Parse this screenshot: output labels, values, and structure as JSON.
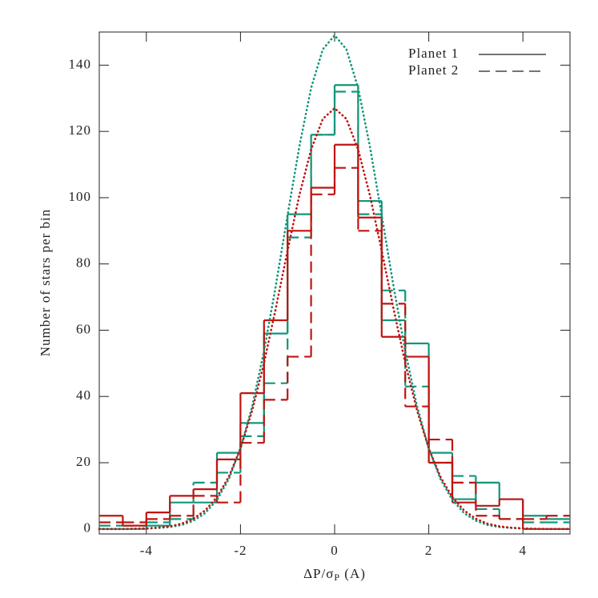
{
  "chart_data": {
    "type": "histogram",
    "xlabel": [
      "ΔP/σ",
      "P",
      " (A)"
    ],
    "ylabel": "Number of stars per bin",
    "xlim": [
      -5,
      5
    ],
    "ylim": [
      -1.5,
      150
    ],
    "xticks": [
      -4,
      -2,
      0,
      2,
      4
    ],
    "yticks": [
      0,
      20,
      40,
      60,
      80,
      100,
      120,
      140
    ],
    "bins": [
      -5,
      -4.5,
      -4,
      -3.5,
      -3,
      -2.5,
      -2,
      -1.5,
      -1,
      -0.5,
      0,
      0.5,
      1,
      1.5,
      2,
      2.5,
      3,
      3.5,
      4,
      4.5,
      5
    ],
    "legend": [
      {
        "label": "Planet 1",
        "dash": "solid"
      },
      {
        "label": "Planet 2",
        "dash": "dashed"
      }
    ],
    "series": [
      {
        "color": "#12967a",
        "dash": "solid",
        "values": [
          0,
          0,
          1,
          8,
          8,
          23,
          32,
          59,
          95,
          119,
          134,
          99,
          63,
          56,
          23,
          9,
          14,
          9,
          4,
          3
        ]
      },
      {
        "color": "#12967a",
        "dash": "dashed",
        "values": [
          1,
          1,
          2,
          3,
          14,
          17,
          28,
          44,
          88,
          119,
          132,
          95,
          72,
          43,
          20,
          16,
          6,
          3,
          2,
          2
        ]
      },
      {
        "color": "#bf1410",
        "dash": "solid",
        "values": [
          4,
          1,
          5,
          10,
          12,
          21,
          41,
          63,
          90,
          103,
          116,
          94,
          58,
          52,
          20,
          8,
          7,
          9,
          0,
          0
        ]
      },
      {
        "color": "#bf1410",
        "dash": "dashed",
        "values": [
          2,
          2,
          3,
          4,
          10,
          8,
          26,
          39,
          52,
          101,
          109,
          90,
          68,
          37,
          27,
          14,
          4,
          3,
          3,
          4
        ]
      }
    ],
    "curves": {
      "x": [
        -5,
        -4.75,
        -4.5,
        -4.25,
        -4,
        -3.75,
        -3.5,
        -3.25,
        -3,
        -2.75,
        -2.5,
        -2.25,
        -2,
        -1.75,
        -1.5,
        -1.25,
        -1,
        -0.75,
        -0.5,
        -0.25,
        0,
        0.25,
        0.5,
        0.75,
        1,
        1.25,
        1.5,
        1.75,
        2,
        2.25,
        2.5,
        2.75,
        3,
        3.25,
        3.5,
        3.75,
        4,
        4.25,
        4.5,
        4.75,
        5
      ],
      "series": [
        {
          "color": "#12967a",
          "values": [
            0,
            0,
            0,
            0,
            0.1,
            0.3,
            0.6,
            1.2,
            2.5,
            4.8,
            8.8,
            15.0,
            24.3,
            37.1,
            53.7,
            73.4,
            94.7,
            115.4,
            133.1,
            144.8,
            149,
            144.8,
            133.1,
            115.4,
            94.7,
            73.4,
            53.7,
            37.1,
            24.3,
            15.0,
            8.8,
            4.8,
            2.5,
            1.2,
            0.6,
            0.3,
            0.1,
            0,
            0,
            0,
            0
          ]
        },
        {
          "color": "#bf1410",
          "values": [
            0,
            0,
            0,
            0.1,
            0.2,
            0.4,
            0.8,
            1.6,
            3.1,
            5.6,
            9.6,
            15.7,
            24.3,
            35.8,
            50.1,
            66.6,
            84.0,
            100.7,
            114.5,
            123.8,
            127,
            123.8,
            114.5,
            100.7,
            84.0,
            66.6,
            50.1,
            35.8,
            24.3,
            15.7,
            9.6,
            5.6,
            3.1,
            1.6,
            0.8,
            0.4,
            0.2,
            0.1,
            0,
            0,
            0
          ]
        }
      ]
    }
  }
}
